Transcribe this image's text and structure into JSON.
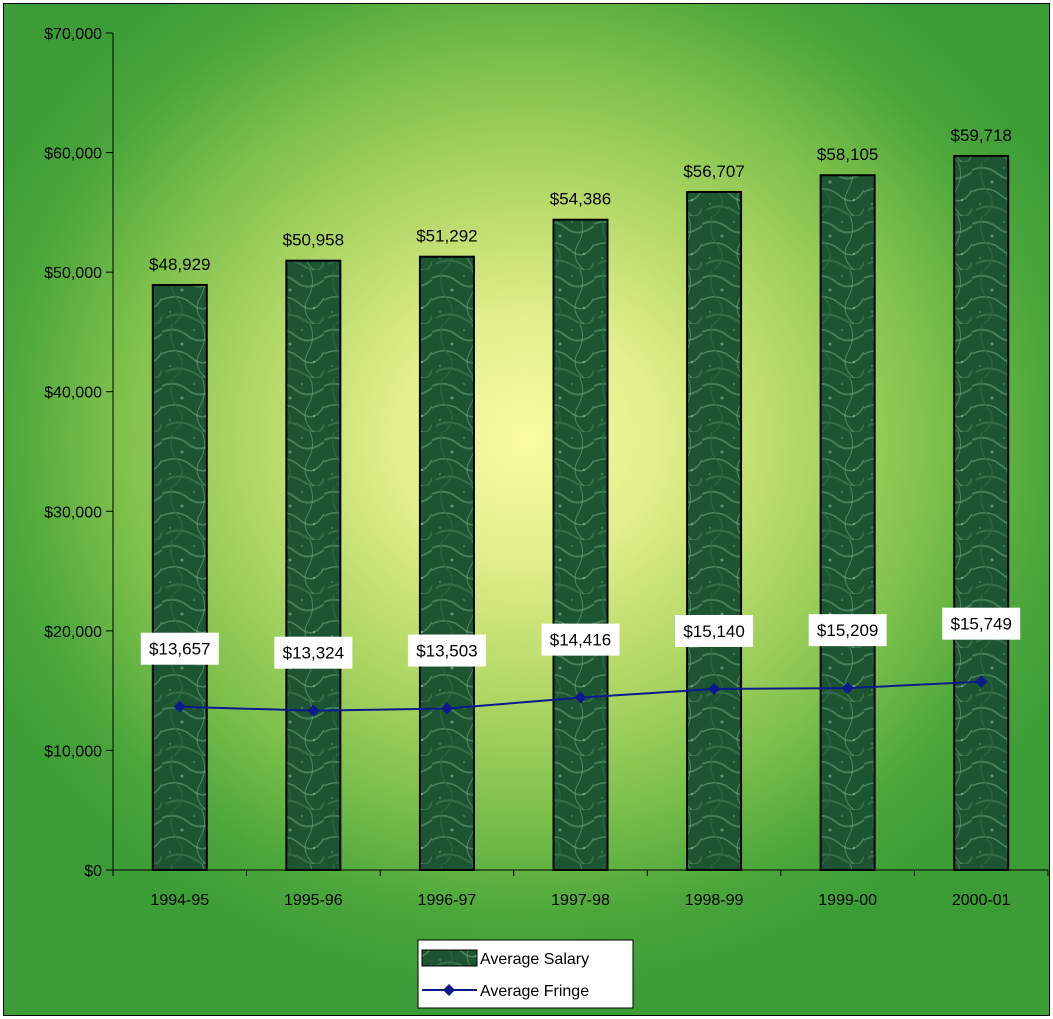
{
  "chart_data": {
    "type": "bar",
    "title": "",
    "xlabel": "",
    "ylabel": "",
    "categories": [
      "1994-95",
      "1995-96",
      "1996-97",
      "1997-98",
      "1998-99",
      "1999-00",
      "2000-01"
    ],
    "ylim": [
      0,
      70000
    ],
    "yticks": [
      0,
      10000,
      20000,
      30000,
      40000,
      50000,
      60000,
      70000
    ],
    "ytick_labels": [
      "$0",
      "$10,000",
      "$20,000",
      "$30,000",
      "$40,000",
      "$50,000",
      "$60,000",
      "$70,000"
    ],
    "grid": false,
    "legend_position": "bottom",
    "series": [
      {
        "name": "Average Salary",
        "type": "bar",
        "values": [
          48929,
          50958,
          51292,
          54386,
          56707,
          58105,
          59718
        ],
        "labels": [
          "$48,929",
          "$50,958",
          "$51,292",
          "$54,386",
          "$56,707",
          "$58,105",
          "$59,718"
        ],
        "color": "#1f5a35"
      },
      {
        "name": "Average Fringe",
        "type": "line",
        "values": [
          13657,
          13324,
          13503,
          14416,
          15140,
          15209,
          15749
        ],
        "labels": [
          "$13,657",
          "$13,324",
          "$13,503",
          "$14,416",
          "$15,140",
          "$15,209",
          "$15,749"
        ],
        "color": "#0b1a8c"
      }
    ]
  }
}
